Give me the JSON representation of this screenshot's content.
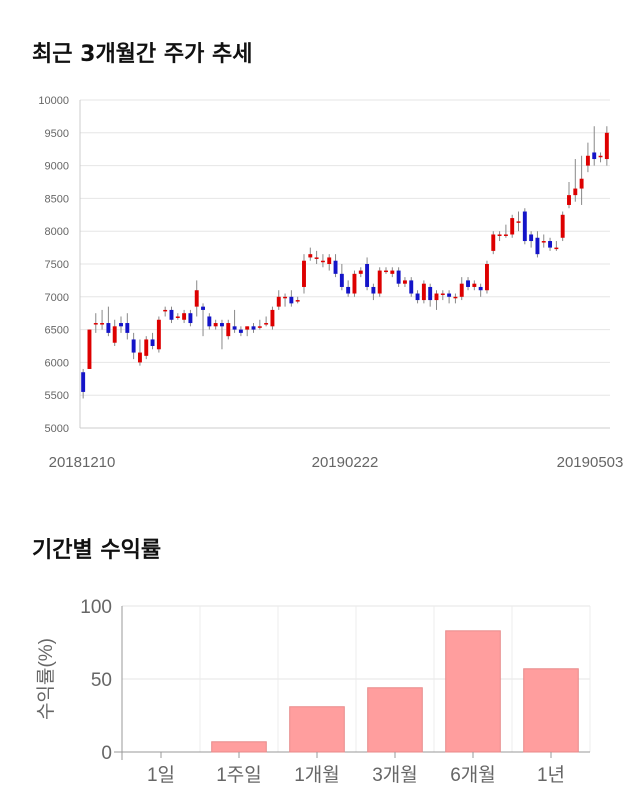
{
  "sections": {
    "price_title": "최근 3개월간 주가 추세",
    "return_title": "기간별 수익률"
  },
  "chart_data": [
    {
      "type": "candlestick",
      "title": "최근 3개월간 주가 추세",
      "ylim": [
        5000,
        10000
      ],
      "y_ticks": [
        5000,
        5500,
        6000,
        6500,
        7000,
        7500,
        8000,
        8500,
        9000,
        9500,
        10000
      ],
      "x_tick_labels": [
        "20181210",
        "20190222",
        "20190503"
      ],
      "grid": true,
      "colors": {
        "up": "#dd0000",
        "down": "#1414c8",
        "wick": "#888888"
      },
      "candles": [
        [
          5850,
          5550,
          5900,
          5450
        ],
        [
          5900,
          6500,
          6500,
          5900
        ],
        [
          6600,
          6600,
          6750,
          6450
        ],
        [
          6600,
          6600,
          6800,
          6500
        ],
        [
          6600,
          6450,
          6850,
          6400
        ],
        [
          6300,
          6550,
          6650,
          6250
        ],
        [
          6600,
          6550,
          6700,
          6450
        ],
        [
          6600,
          6450,
          6750,
          6350
        ],
        [
          6350,
          6150,
          6450,
          6050
        ],
        [
          6000,
          6150,
          6350,
          5950
        ],
        [
          6100,
          6350,
          6400,
          6050
        ],
        [
          6350,
          6250,
          6450,
          6200
        ],
        [
          6200,
          6650,
          6700,
          6150
        ],
        [
          6800,
          6800,
          6850,
          6700
        ],
        [
          6800,
          6650,
          6850,
          6600
        ],
        [
          6700,
          6700,
          6750,
          6650
        ],
        [
          6650,
          6750,
          6800,
          6600
        ],
        [
          6750,
          6600,
          6800,
          6550
        ],
        [
          6850,
          7100,
          7250,
          6700
        ],
        [
          6850,
          6800,
          6900,
          6400
        ],
        [
          6700,
          6550,
          6750,
          6500
        ],
        [
          6550,
          6600,
          6650,
          6500
        ],
        [
          6600,
          6550,
          6650,
          6200
        ],
        [
          6400,
          6600,
          6650,
          6350
        ],
        [
          6550,
          6500,
          6800,
          6450
        ],
        [
          6500,
          6450,
          6550,
          6400
        ],
        [
          6500,
          6550,
          6550,
          6400
        ],
        [
          6550,
          6500,
          6600,
          6450
        ],
        [
          6550,
          6550,
          6650,
          6500
        ],
        [
          6600,
          6600,
          6700,
          6550
        ],
        [
          6550,
          6800,
          6850,
          6500
        ],
        [
          6850,
          7000,
          7100,
          6800
        ],
        [
          7000,
          7000,
          7050,
          6850
        ],
        [
          7000,
          6900,
          7100,
          6850
        ],
        [
          6950,
          6950,
          7000,
          6900
        ],
        [
          7150,
          7550,
          7650,
          7050
        ],
        [
          7600,
          7650,
          7750,
          7550
        ],
        [
          7600,
          7600,
          7700,
          7500
        ],
        [
          7550,
          7550,
          7650,
          7450
        ],
        [
          7500,
          7600,
          7650,
          7400
        ],
        [
          7550,
          7350,
          7650,
          7300
        ],
        [
          7350,
          7150,
          7500,
          7100
        ],
        [
          7150,
          7050,
          7250,
          7000
        ],
        [
          7050,
          7350,
          7400,
          7000
        ],
        [
          7350,
          7400,
          7450,
          7300
        ],
        [
          7500,
          7150,
          7600,
          7100
        ],
        [
          7150,
          7050,
          7200,
          6950
        ],
        [
          7050,
          7400,
          7450,
          7000
        ],
        [
          7400,
          7400,
          7450,
          7350
        ],
        [
          7350,
          7400,
          7450,
          7300
        ],
        [
          7400,
          7200,
          7450,
          7150
        ],
        [
          7200,
          7250,
          7300,
          7150
        ],
        [
          7250,
          7050,
          7300,
          7000
        ],
        [
          7050,
          6950,
          7100,
          6900
        ],
        [
          6950,
          7200,
          7250,
          6900
        ],
        [
          7150,
          6950,
          7200,
          6850
        ],
        [
          6950,
          7050,
          7100,
          6800
        ],
        [
          7050,
          7050,
          7100,
          6950
        ],
        [
          7050,
          7000,
          7100,
          6900
        ],
        [
          7000,
          7000,
          7050,
          6900
        ],
        [
          7000,
          7200,
          7300,
          6950
        ],
        [
          7250,
          7150,
          7300,
          7100
        ],
        [
          7150,
          7200,
          7250,
          7100
        ],
        [
          7150,
          7100,
          7200,
          7000
        ],
        [
          7100,
          7500,
          7550,
          7050
        ],
        [
          7700,
          7950,
          8000,
          7650
        ],
        [
          7950,
          7950,
          8000,
          7850
        ],
        [
          7950,
          7950,
          8100,
          7900
        ],
        [
          7950,
          8200,
          8250,
          7900
        ],
        [
          8150,
          8150,
          8300,
          8000
        ],
        [
          8300,
          7850,
          8350,
          7800
        ],
        [
          7950,
          7850,
          8000,
          7750
        ],
        [
          7900,
          7650,
          8000,
          7600
        ],
        [
          7850,
          7850,
          7950,
          7750
        ],
        [
          7850,
          7750,
          7900,
          7700
        ],
        [
          7750,
          7750,
          7850,
          7700
        ],
        [
          7900,
          8250,
          8300,
          7850
        ],
        [
          8400,
          8550,
          8750,
          8350
        ],
        [
          8550,
          8650,
          9100,
          8450
        ],
        [
          8650,
          8800,
          9150,
          8400
        ],
        [
          9000,
          9150,
          9350,
          8900
        ],
        [
          9200,
          9100,
          9600,
          9000
        ],
        [
          9150,
          9150,
          9200,
          9050
        ],
        [
          9100,
          9500,
          9600,
          9000
        ]
      ]
    },
    {
      "type": "bar",
      "categories": [
        "1일",
        "1주일",
        "1개월",
        "3개월",
        "6개월",
        "1년"
      ],
      "values": [
        0,
        7,
        31,
        44,
        83,
        57
      ],
      "ylabel": "수익률(%)",
      "ylim": [
        0,
        100
      ],
      "y_ticks": [
        0,
        50,
        100
      ],
      "grid": true,
      "bar_color": "#ff9e9e",
      "bar_edge_color": "#e88a8a"
    }
  ]
}
